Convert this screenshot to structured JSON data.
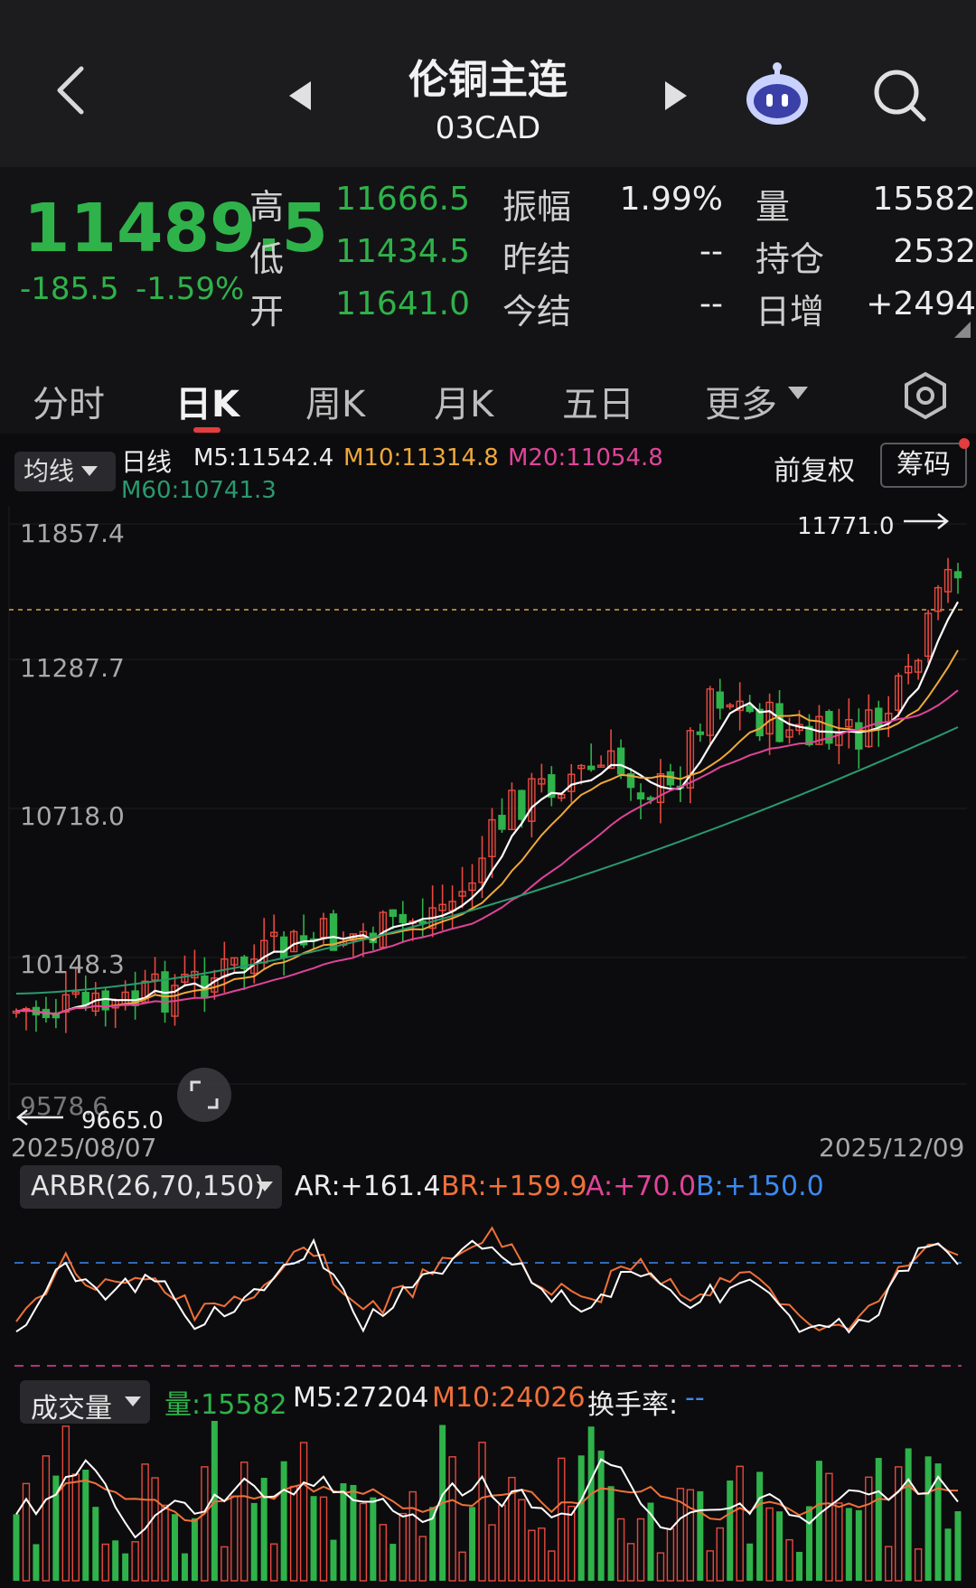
{
  "header": {
    "title": "伦铜主连",
    "code": "03CAD",
    "back_icon": "back-chevron-icon",
    "prev_icon": "prev-triangle-icon",
    "next_icon": "next-triangle-icon",
    "assistant_icon": "robot-assistant-icon",
    "search_icon": "search-icon"
  },
  "quote": {
    "price": "11489.5",
    "change": "-185.5",
    "change_pct": "-1.59%",
    "rows": [
      {
        "label1": "高",
        "val1": "11666.5",
        "label2": "振幅",
        "val2": "1.99%",
        "label3": "量",
        "val3": "15582"
      },
      {
        "label1": "低",
        "val1": "11434.5",
        "label2": "昨结",
        "val2": "--",
        "label3": "持仓",
        "val3": "2532"
      },
      {
        "label1": "开",
        "val1": "11641.0",
        "label2": "今结",
        "val2": "--",
        "label3": "日增",
        "val3": "+2494"
      }
    ]
  },
  "tabs": [
    "分时",
    "日K",
    "周K",
    "月K",
    "五日",
    "更多"
  ],
  "active_tab": "日K",
  "kline": {
    "ma_selector": "均线",
    "period": "日线",
    "m5": "M5:11542.4",
    "m10": "M10:11314.8",
    "m20": "M20:11054.8",
    "m60": "M60:10741.3",
    "adjust": "前复权",
    "chips": "筹码",
    "y_ticks": [
      "11857.4",
      "11287.7",
      "10718.0",
      "10148.3",
      "9578.6"
    ],
    "high_label": "11771.0",
    "low_label": "9665.0",
    "date_start": "2025/08/07",
    "date_end": "2025/12/09"
  },
  "arbr": {
    "selector": "ARBR(26,70,150)",
    "ar": "AR:+161.4",
    "br": "BR:+159.9",
    "a": "A:+70.0",
    "b": "B:+150.0"
  },
  "volume": {
    "selector": "成交量",
    "vol": "量:15582",
    "m5": "M5:27204",
    "m10": "M10:24026",
    "turnover_label": "换手率:",
    "turnover_value": "--"
  },
  "colors": {
    "up": "#e8493e",
    "down": "#2fb24a",
    "ma5": "#ffffff",
    "ma10": "#f0a83a",
    "ma20": "#e0449a",
    "ma60": "#2a9a6e",
    "bg": "#0c0c0e"
  }
}
